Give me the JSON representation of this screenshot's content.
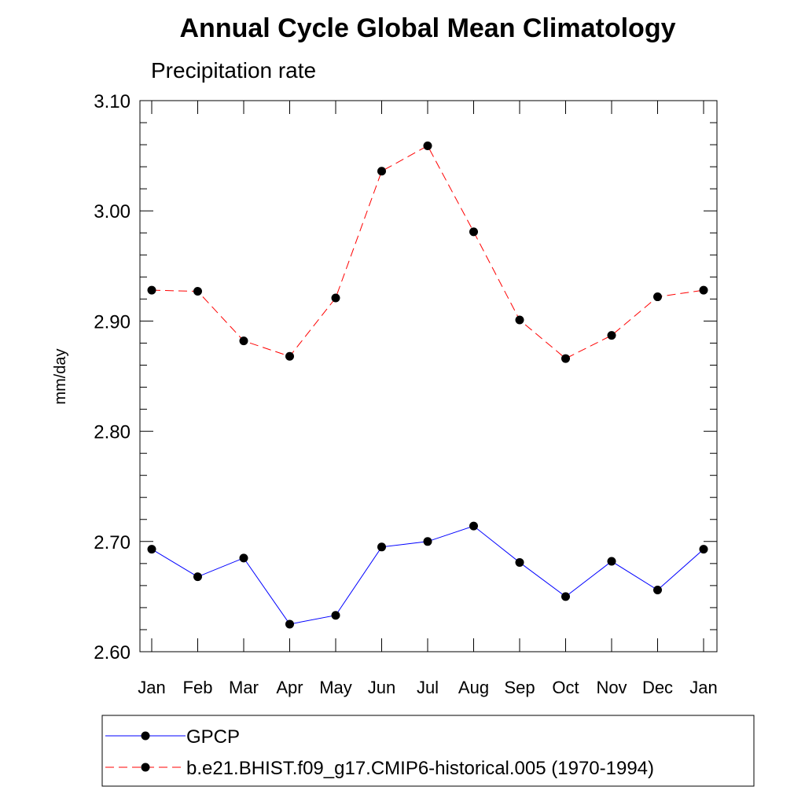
{
  "chart_data": {
    "type": "line",
    "title": "Annual Cycle Global Mean Climatology",
    "subtitle": "Precipitation rate",
    "xlabel": "",
    "ylabel": "mm/day",
    "categories": [
      "Jan",
      "Feb",
      "Mar",
      "Apr",
      "May",
      "Jun",
      "Jul",
      "Aug",
      "Sep",
      "Oct",
      "Nov",
      "Dec",
      "Jan"
    ],
    "ylim": [
      2.6,
      3.1
    ],
    "yticks": [
      "2.60",
      "2.70",
      "2.80",
      "2.90",
      "3.00",
      "3.10"
    ],
    "ytick_values": [
      2.6,
      2.7,
      2.8,
      2.9,
      3.0,
      3.1
    ],
    "y_minor_step": 0.02,
    "grid": false,
    "legend_position": "bottom",
    "series": [
      {
        "name": "GPCP",
        "color": "#0000ff",
        "line_style": "solid",
        "marker": "filled-circle",
        "values": [
          2.693,
          2.668,
          2.685,
          2.625,
          2.633,
          2.695,
          2.7,
          2.714,
          2.681,
          2.65,
          2.682,
          2.656,
          2.693
        ]
      },
      {
        "name": "b.e21.BHIST.f09_g17.CMIP6-historical.005 (1970-1994)",
        "color": "#ff0000",
        "line_style": "dashed",
        "marker": "filled-circle",
        "values": [
          2.928,
          2.927,
          2.882,
          2.868,
          2.921,
          3.036,
          3.059,
          2.981,
          2.901,
          2.866,
          2.887,
          2.922,
          2.928
        ]
      }
    ]
  }
}
